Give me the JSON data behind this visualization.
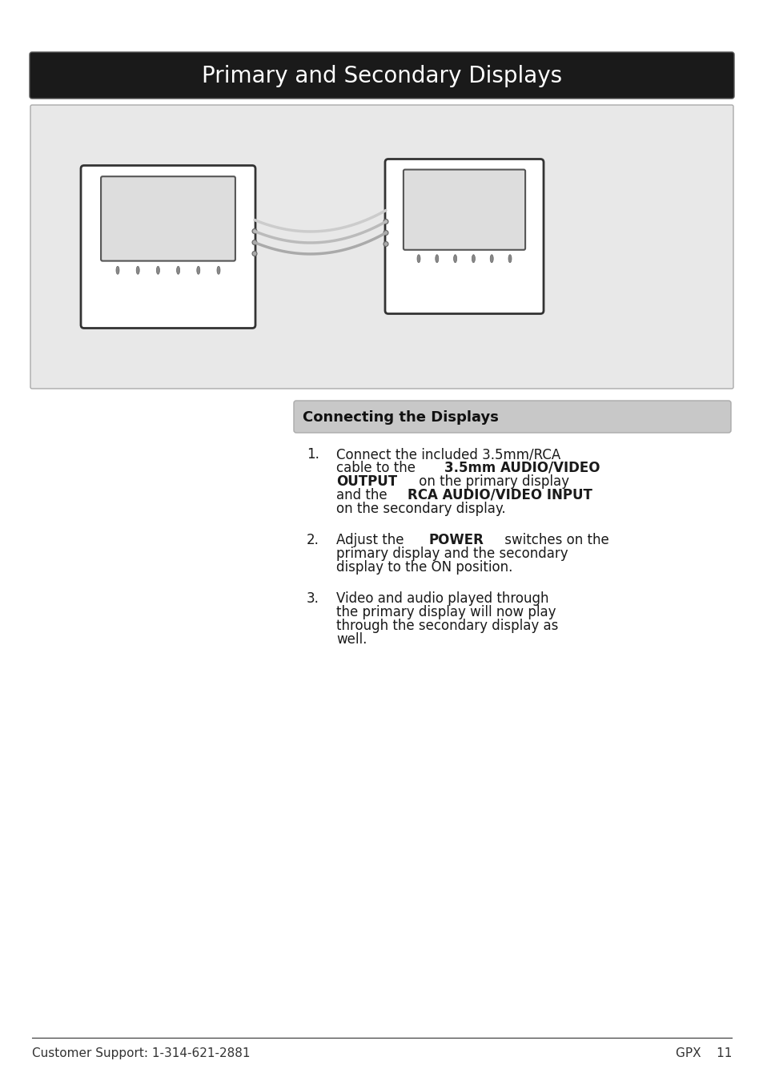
{
  "title": "Primary and Secondary Displays",
  "title_bg": "#1a1a1a",
  "title_text_color": "#ffffff",
  "title_fontsize": 20,
  "section_header": "Connecting the Displays",
  "section_header_bg": "#c8c8c8",
  "section_header_fontsize": 13,
  "body_fontsize": 12,
  "footer_left": "Customer Support: 1-314-621-2881",
  "footer_right": "GPX    11",
  "footer_fontsize": 11,
  "page_bg": "#ffffff",
  "image_box_bg": "#e8e8e8",
  "items": [
    {
      "number": "1.",
      "text_parts": [
        {
          "text": "Connect the included 3.5mm/RCA\ncable to the ",
          "bold": false
        },
        {
          "text": "3.5mm AUDIO/VIDEO\nOUTPUT",
          "bold": true
        },
        {
          "text": " on the primary display\nand the ",
          "bold": false
        },
        {
          "text": "RCA AUDIO/VIDEO INPUT",
          "bold": true
        },
        {
          "text": "\non the secondary display.",
          "bold": false
        }
      ]
    },
    {
      "number": "2.",
      "text_parts": [
        {
          "text": "Adjust the ",
          "bold": false
        },
        {
          "text": "POWER",
          "bold": true
        },
        {
          "text": " switches on the\nprimary display and the secondary\ndisplay to the ON position.",
          "bold": false
        }
      ]
    },
    {
      "number": "3.",
      "text_parts": [
        {
          "text": "Video and audio played through\nthe primary display will now play\nthrough the secondary display as\nwell.",
          "bold": false
        }
      ]
    }
  ]
}
